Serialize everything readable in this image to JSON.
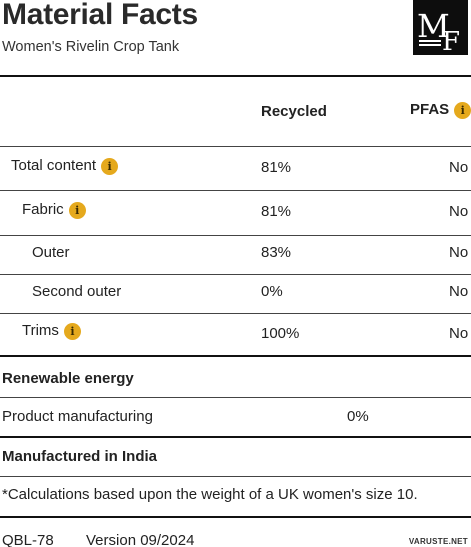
{
  "header": {
    "title": "Material Facts",
    "subtitle": "Women's Rivelin Crop Tank",
    "logo_text": "MF"
  },
  "table": {
    "columns": {
      "recycled": "Recycled",
      "pfas": "PFAS"
    },
    "rows": [
      {
        "label": "Total content",
        "recycled": "81%",
        "pfas": "No",
        "info": "i"
      },
      {
        "label": "Fabric",
        "recycled": "81%",
        "pfas": "No",
        "info": "i"
      },
      {
        "label": "Outer",
        "recycled": "83%",
        "pfas": "No"
      },
      {
        "label": "Second outer",
        "recycled": "0%",
        "pfas": "No"
      },
      {
        "label": "Trims",
        "recycled": "100%",
        "pfas": "No",
        "info": "i"
      }
    ],
    "pfas_info": "i"
  },
  "renewable": {
    "heading": "Renewable energy",
    "label": "Product manufacturing",
    "value": "0%"
  },
  "manufactured": "Manufactured in India",
  "footnote": "*Calculations based upon the weight of a UK women's size 10.",
  "footer": {
    "code": "QBL-78",
    "version": "Version 09/2024"
  },
  "watermark": "VARUSTE.NET",
  "colors": {
    "info_badge": "#e5a91d",
    "text": "#222222",
    "logo_bg": "#0d0d0d"
  }
}
